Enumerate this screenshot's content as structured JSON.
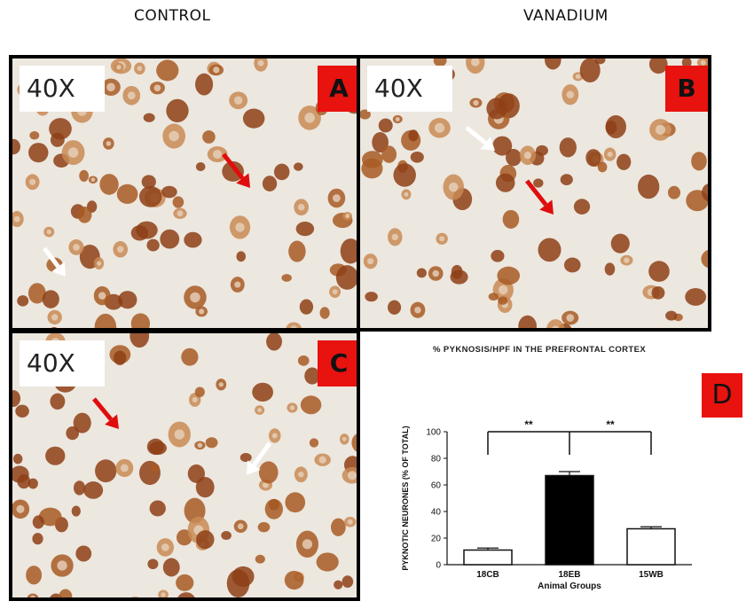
{
  "header": {
    "left_title": "CONTROL",
    "right_title": "VANADIUM"
  },
  "panels": [
    {
      "magnification": "40X",
      "letter": "A"
    },
    {
      "magnification": "40X",
      "letter": "B"
    },
    {
      "magnification": "40X",
      "letter": "C"
    }
  ],
  "panel_badge_color": "#e8120f",
  "arrow_colors": {
    "red": "#e00d0d",
    "white": "#ffffff"
  },
  "stain_color": "#a85a24",
  "chart_badge": "D",
  "chart_data": {
    "type": "bar",
    "title": "% PYKNOSIS/HPF IN THE PREFRONTAL CORTEX",
    "xlabel": "Animal Groups",
    "ylabel": "PYKNOTIC NEURONES (% OF TOTAL)",
    "categories": [
      "18CB",
      "18EB",
      "15WB"
    ],
    "values": [
      11,
      67,
      27
    ],
    "errors": [
      1.5,
      3,
      1.5
    ],
    "bar_fills": [
      "#ffffff",
      "#000000",
      "#ffffff"
    ],
    "ylim": [
      0,
      100
    ],
    "yticks": [
      0,
      20,
      40,
      60,
      80,
      100
    ],
    "significance": [
      {
        "from": "18CB",
        "to": "18EB",
        "label": "**"
      },
      {
        "from": "18EB",
        "to": "15WB",
        "label": "**"
      }
    ]
  }
}
